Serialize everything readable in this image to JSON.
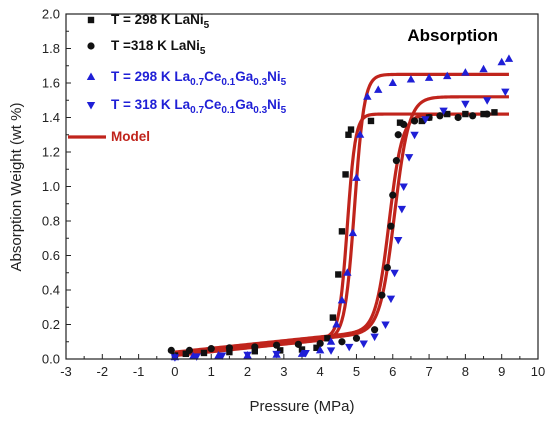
{
  "chart_data": {
    "type": "scatter",
    "title": "Absorption",
    "xlabel": "Pressure (MPa)",
    "ylabel": "Absorption Weight (wt %)",
    "xlim": [
      -3,
      10
    ],
    "ylim": [
      0,
      2.0
    ],
    "xticks": [
      -3,
      -2,
      -1,
      0,
      1,
      2,
      3,
      4,
      5,
      6,
      7,
      8,
      9,
      10
    ],
    "yticks": [
      0.0,
      0.2,
      0.4,
      0.6,
      0.8,
      1.0,
      1.2,
      1.4,
      1.6,
      1.8,
      2.0
    ],
    "xtick_labels": [
      "-3",
      "-2",
      "-1",
      "0",
      "1",
      "2",
      "3",
      "4",
      "5",
      "6",
      "7",
      "8",
      "9",
      "10"
    ],
    "ytick_labels": [
      "0.0",
      "0.2",
      "0.4",
      "0.6",
      "0.8",
      "1.0",
      "1.2",
      "1.4",
      "1.6",
      "1.8",
      "2.0"
    ],
    "legend_position": "top-left",
    "series": [
      {
        "name": "T = 298 K LaNi5",
        "legend": {
          "prefix": "T = 298 K LaNi",
          "sub": "5",
          "rest": [],
          "tail": ""
        },
        "marker": "square",
        "color": "#111111",
        "points": [
          [
            0.0,
            0.02
          ],
          [
            0.3,
            0.03
          ],
          [
            0.8,
            0.035
          ],
          [
            1.5,
            0.04
          ],
          [
            2.2,
            0.045
          ],
          [
            2.9,
            0.05
          ],
          [
            3.5,
            0.055
          ],
          [
            3.9,
            0.065
          ],
          [
            4.2,
            0.12
          ],
          [
            4.35,
            0.24
          ],
          [
            4.5,
            0.49
          ],
          [
            4.6,
            0.74
          ],
          [
            4.7,
            1.07
          ],
          [
            4.78,
            1.3
          ],
          [
            4.85,
            1.33
          ],
          [
            5.4,
            1.38
          ],
          [
            6.2,
            1.37
          ],
          [
            6.8,
            1.38
          ],
          [
            7.0,
            1.4
          ],
          [
            7.5,
            1.42
          ],
          [
            8.0,
            1.42
          ],
          [
            8.5,
            1.42
          ],
          [
            8.8,
            1.43
          ]
        ]
      },
      {
        "name": "T =318 K LaNi5",
        "legend": {
          "prefix": "T =318 K LaNi",
          "sub": "5",
          "rest": [],
          "tail": ""
        },
        "marker": "circle",
        "color": "#111111",
        "points": [
          [
            -0.1,
            0.05
          ],
          [
            0.4,
            0.05
          ],
          [
            1.0,
            0.06
          ],
          [
            1.5,
            0.065
          ],
          [
            2.2,
            0.07
          ],
          [
            2.8,
            0.08
          ],
          [
            3.4,
            0.085
          ],
          [
            4.0,
            0.09
          ],
          [
            4.6,
            0.1
          ],
          [
            5.0,
            0.12
          ],
          [
            5.5,
            0.17
          ],
          [
            5.7,
            0.37
          ],
          [
            5.85,
            0.53
          ],
          [
            5.95,
            0.77
          ],
          [
            6.0,
            0.95
          ],
          [
            6.1,
            1.15
          ],
          [
            6.15,
            1.3
          ],
          [
            6.3,
            1.36
          ],
          [
            6.6,
            1.38
          ],
          [
            7.0,
            1.4
          ],
          [
            7.3,
            1.41
          ],
          [
            7.8,
            1.4
          ],
          [
            8.2,
            1.41
          ],
          [
            8.6,
            1.42
          ]
        ]
      },
      {
        "name": "T = 298 K La0.7Ce0.1Ga0.3Ni5",
        "legend": {
          "prefix": "T = 298 K La",
          "sub": "0.7",
          "rest": [
            {
              "t": "Ce",
              "s": "0.1"
            },
            {
              "t": "Ga",
              "s": "0.3"
            },
            {
              "t": "Ni",
              "s": "5"
            }
          ],
          "tail": ""
        },
        "marker": "triangle-up",
        "color": "#1f1fd6",
        "points": [
          [
            0.0,
            0.01
          ],
          [
            0.5,
            0.015
          ],
          [
            1.2,
            0.02
          ],
          [
            2.0,
            0.02
          ],
          [
            2.8,
            0.025
          ],
          [
            3.5,
            0.03
          ],
          [
            4.0,
            0.05
          ],
          [
            4.3,
            0.1
          ],
          [
            4.45,
            0.2
          ],
          [
            4.6,
            0.34
          ],
          [
            4.75,
            0.5
          ],
          [
            4.9,
            0.73
          ],
          [
            5.0,
            1.05
          ],
          [
            5.1,
            1.3
          ],
          [
            5.3,
            1.52
          ],
          [
            5.6,
            1.56
          ],
          [
            6.0,
            1.6
          ],
          [
            6.5,
            1.62
          ],
          [
            7.0,
            1.63
          ],
          [
            7.5,
            1.64
          ],
          [
            8.0,
            1.66
          ],
          [
            8.5,
            1.68
          ],
          [
            9.0,
            1.72
          ],
          [
            9.2,
            1.74
          ]
        ]
      },
      {
        "name": "T = 318 K La0.7Ce0.1Ga0.3Ni5",
        "legend": {
          "prefix": "T = 318 K La",
          "sub": "0.7",
          "rest": [
            {
              "t": "Ce",
              "s": "0.1"
            },
            {
              "t": "Ga",
              "s": "0.3"
            },
            {
              "t": "Ni",
              "s": "5"
            }
          ],
          "tail": ""
        },
        "marker": "triangle-down",
        "color": "#1f1fd6",
        "points": [
          [
            0.0,
            0.01
          ],
          [
            0.6,
            0.015
          ],
          [
            1.3,
            0.02
          ],
          [
            2.0,
            0.025
          ],
          [
            2.8,
            0.03
          ],
          [
            3.6,
            0.035
          ],
          [
            4.3,
            0.05
          ],
          [
            4.8,
            0.07
          ],
          [
            5.2,
            0.09
          ],
          [
            5.5,
            0.13
          ],
          [
            5.8,
            0.2
          ],
          [
            5.95,
            0.35
          ],
          [
            6.05,
            0.5
          ],
          [
            6.15,
            0.69
          ],
          [
            6.25,
            0.87
          ],
          [
            6.3,
            1.0
          ],
          [
            6.45,
            1.17
          ],
          [
            6.6,
            1.3
          ],
          [
            6.9,
            1.39
          ],
          [
            7.4,
            1.44
          ],
          [
            8.0,
            1.48
          ],
          [
            8.6,
            1.5
          ],
          [
            9.1,
            1.55
          ]
        ]
      },
      {
        "name": "Model",
        "legend": {
          "prefix": "Model",
          "sub": "",
          "rest": [],
          "tail": ""
        },
        "marker": "line",
        "color": "#c0241c",
        "curves": [
          {
            "p0": 4.75,
            "plat": 1.42,
            "base": 0.03,
            "k": 9.0
          },
          {
            "p0": 4.95,
            "plat": 1.65,
            "base": 0.02,
            "k": 7.5
          },
          {
            "p0": 5.9,
            "plat": 1.42,
            "base": 0.04,
            "k": 5.5
          },
          {
            "p0": 6.05,
            "plat": 1.52,
            "base": 0.03,
            "k": 5.0
          }
        ]
      }
    ]
  }
}
